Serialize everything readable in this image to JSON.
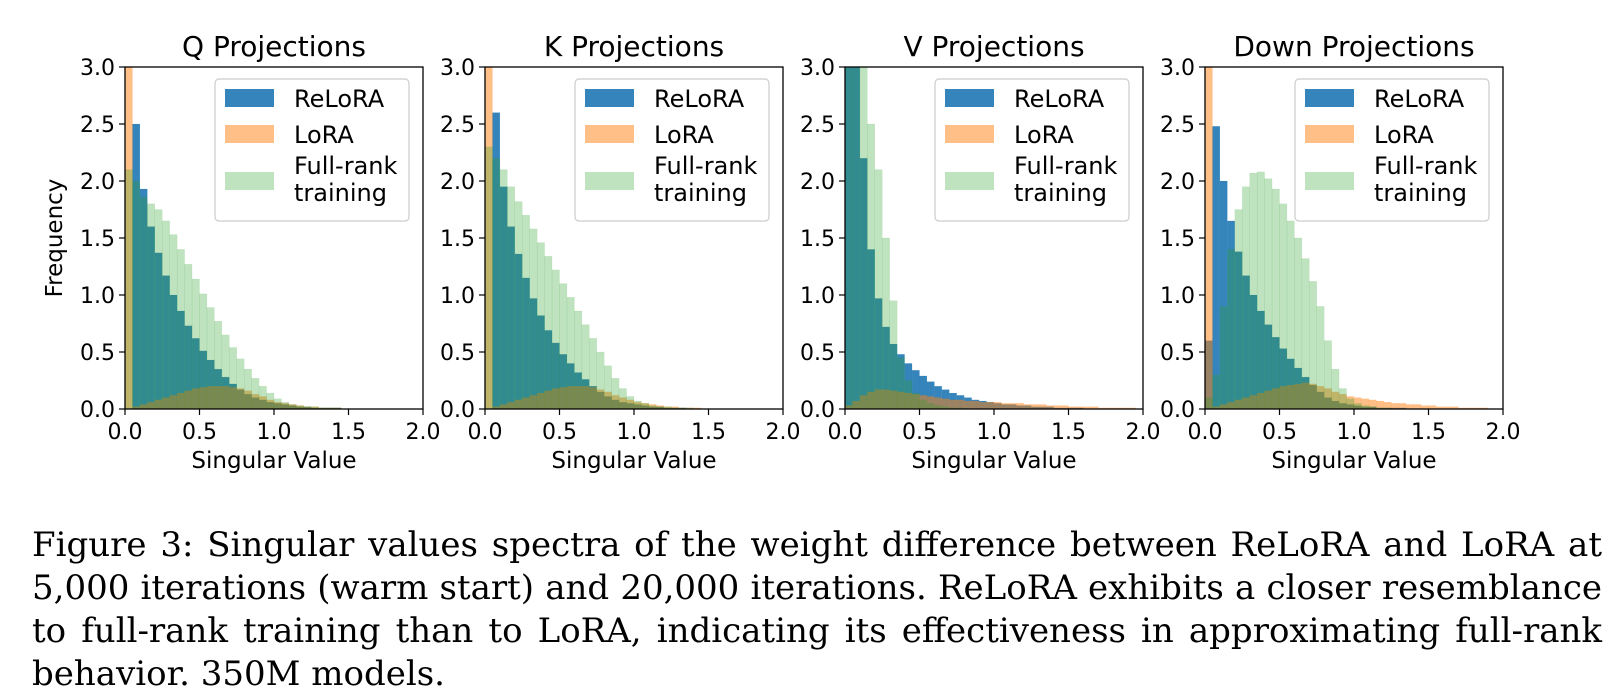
{
  "caption": "Figure 3: Singular values spectra of the weight difference between ReLoRA and LoRA at 5,000 iterations (warm start) and 20,000 iterations. ReLoRA exhibits a closer resemblance to full-rank training than to LoRA, indicating its effectiveness in approximating full-rank behavior. 350M models.",
  "colors": {
    "relora": "#1f77b4",
    "lora": "#ff7f0e",
    "full": "#2ca02c"
  },
  "chart_data": [
    {
      "type": "bar",
      "title": "Q Projections",
      "xlabel": "Singular Value",
      "ylabel": "Frequency",
      "xlim": [
        0,
        2.0
      ],
      "ylim": [
        0,
        3.0
      ],
      "xticks": [
        "0.0",
        "0.5",
        "1.0",
        "1.5",
        "2.0"
      ],
      "yticks": [
        "0.0",
        "0.5",
        "1.0",
        "1.5",
        "2.0",
        "2.5",
        "3.0"
      ],
      "legend": {
        "position": "top-right",
        "entries": [
          "ReLoRA",
          "LoRA",
          "Full-rank training"
        ]
      },
      "bin_width": 0.05,
      "bin_start": 0.0,
      "series": [
        {
          "name": "ReLoRA",
          "values": [
            0,
            2.5,
            1.93,
            1.6,
            1.37,
            1.17,
            1.0,
            0.86,
            0.73,
            0.62,
            0.51,
            0.43,
            0.35,
            0.28,
            0.22,
            0.17,
            0.13,
            0.1,
            0.08,
            0.06,
            0.05,
            0.04,
            0.03,
            0.02,
            0.02,
            0.01,
            0.01,
            0.01,
            0.01,
            0.0,
            0.0,
            0.0,
            0.0,
            0.0,
            0.0,
            0.0,
            0.0,
            0.0,
            0.0,
            0.0
          ]
        },
        {
          "name": "LoRA",
          "values": [
            3.2,
            0.02,
            0.04,
            0.06,
            0.08,
            0.1,
            0.12,
            0.14,
            0.16,
            0.18,
            0.19,
            0.2,
            0.2,
            0.2,
            0.19,
            0.18,
            0.16,
            0.13,
            0.11,
            0.08,
            0.06,
            0.05,
            0.04,
            0.03,
            0.02,
            0.02,
            0.01,
            0.01,
            0.01,
            0.0,
            0.0,
            0.0,
            0.0,
            0.0,
            0.0,
            0.0,
            0.0,
            0.0,
            0.0,
            0.0
          ]
        },
        {
          "name": "Full-rank training",
          "values": [
            2.1,
            2.0,
            1.86,
            1.8,
            1.75,
            1.65,
            1.53,
            1.4,
            1.27,
            1.14,
            1.01,
            0.89,
            0.77,
            0.65,
            0.54,
            0.44,
            0.35,
            0.27,
            0.2,
            0.14,
            0.09,
            0.06,
            0.04,
            0.03,
            0.02,
            0.02,
            0.01,
            0.01,
            0.01,
            0.0,
            0.0,
            0.0,
            0.0,
            0.0,
            0.0,
            0.0,
            0.0,
            0.0,
            0.0,
            0.0
          ]
        }
      ]
    },
    {
      "type": "bar",
      "title": "K Projections",
      "xlabel": "Singular Value",
      "ylabel": "",
      "xlim": [
        0,
        2.0
      ],
      "ylim": [
        0,
        3.0
      ],
      "xticks": [
        "0.0",
        "0.5",
        "1.0",
        "1.5",
        "2.0"
      ],
      "yticks": [
        "0.0",
        "0.5",
        "1.0",
        "1.5",
        "2.0",
        "2.5",
        "3.0"
      ],
      "legend": {
        "position": "top-right",
        "entries": [
          "ReLoRA",
          "LoRA",
          "Full-rank training"
        ]
      },
      "bin_width": 0.05,
      "bin_start": 0.0,
      "series": [
        {
          "name": "ReLoRA",
          "values": [
            0,
            2.6,
            1.95,
            1.6,
            1.36,
            1.15,
            0.97,
            0.82,
            0.69,
            0.58,
            0.48,
            0.4,
            0.32,
            0.26,
            0.2,
            0.15,
            0.11,
            0.08,
            0.06,
            0.05,
            0.04,
            0.03,
            0.02,
            0.02,
            0.01,
            0.01,
            0.01,
            0.0,
            0.0,
            0.0,
            0.0,
            0.0,
            0.0,
            0.0,
            0.0,
            0.0,
            0.0,
            0.0,
            0.0,
            0.0
          ]
        },
        {
          "name": "LoRA",
          "values": [
            3.2,
            0.02,
            0.04,
            0.06,
            0.08,
            0.1,
            0.12,
            0.14,
            0.16,
            0.18,
            0.19,
            0.2,
            0.2,
            0.2,
            0.19,
            0.17,
            0.15,
            0.12,
            0.1,
            0.08,
            0.06,
            0.05,
            0.04,
            0.03,
            0.02,
            0.02,
            0.01,
            0.01,
            0.01,
            0.0,
            0.0,
            0.0,
            0.0,
            0.0,
            0.0,
            0.0,
            0.0,
            0.0,
            0.0,
            0.0
          ]
        },
        {
          "name": "Full-rank training",
          "values": [
            2.3,
            2.2,
            2.1,
            1.95,
            1.82,
            1.7,
            1.58,
            1.46,
            1.34,
            1.22,
            1.1,
            0.98,
            0.86,
            0.74,
            0.62,
            0.5,
            0.38,
            0.27,
            0.18,
            0.11,
            0.07,
            0.05,
            0.03,
            0.02,
            0.02,
            0.01,
            0.01,
            0.01,
            0.0,
            0.0,
            0.0,
            0.0,
            0.0,
            0.0,
            0.0,
            0.0,
            0.0,
            0.0,
            0.0,
            0.0
          ]
        }
      ]
    },
    {
      "type": "bar",
      "title": "V Projections",
      "xlabel": "Singular Value",
      "ylabel": "",
      "xlim": [
        0,
        2.0
      ],
      "ylim": [
        0,
        3.0
      ],
      "xticks": [
        "0.0",
        "0.5",
        "1.0",
        "1.5",
        "2.0"
      ],
      "yticks": [
        "0.0",
        "0.5",
        "1.0",
        "1.5",
        "2.0",
        "2.5",
        "3.0"
      ],
      "legend": {
        "position": "top-right",
        "entries": [
          "ReLoRA",
          "LoRA",
          "Full-rank training"
        ]
      },
      "bin_width": 0.05,
      "bin_start": 0.0,
      "series": [
        {
          "name": "ReLoRA",
          "values": [
            3.2,
            3.0,
            2.2,
            1.4,
            0.97,
            0.72,
            0.57,
            0.48,
            0.4,
            0.34,
            0.29,
            0.24,
            0.2,
            0.17,
            0.14,
            0.12,
            0.1,
            0.08,
            0.07,
            0.06,
            0.05,
            0.04,
            0.04,
            0.03,
            0.03,
            0.02,
            0.02,
            0.02,
            0.01,
            0.01,
            0.01,
            0.01,
            0.0,
            0.0,
            0.0,
            0.0,
            0.0,
            0.0,
            0.0,
            0.0
          ]
        },
        {
          "name": "LoRA",
          "values": [
            0.03,
            0.07,
            0.12,
            0.15,
            0.17,
            0.17,
            0.16,
            0.15,
            0.14,
            0.13,
            0.12,
            0.11,
            0.1,
            0.09,
            0.08,
            0.08,
            0.07,
            0.07,
            0.06,
            0.06,
            0.06,
            0.05,
            0.05,
            0.05,
            0.04,
            0.04,
            0.04,
            0.03,
            0.03,
            0.03,
            0.02,
            0.02,
            0.02,
            0.02,
            0.01,
            0.01,
            0.01,
            0.01,
            0.01,
            0.0
          ]
        },
        {
          "name": "Full-rank training",
          "values": [
            3.2,
            3.2,
            3.0,
            2.5,
            2.1,
            1.5,
            0.95,
            0.45,
            0.25,
            0.14,
            0.08,
            0.05,
            0.03,
            0.02,
            0.01,
            0.01,
            0.0,
            0.0,
            0.0,
            0.0,
            0.0,
            0.0,
            0.0,
            0.0,
            0.0,
            0.0,
            0.0,
            0.0,
            0.0,
            0.0,
            0.0,
            0.0,
            0.0,
            0.0,
            0.0,
            0.0,
            0.0,
            0.0,
            0.0,
            0.0
          ]
        }
      ]
    },
    {
      "type": "bar",
      "title": "Down Projections",
      "xlabel": "Singular Value",
      "ylabel": "",
      "xlim": [
        0,
        2.0
      ],
      "ylim": [
        0,
        3.0
      ],
      "xticks": [
        "0.0",
        "0.5",
        "1.0",
        "1.5",
        "2.0"
      ],
      "yticks": [
        "0.0",
        "0.5",
        "1.0",
        "1.5",
        "2.0",
        "2.5",
        "3.0"
      ],
      "legend": {
        "position": "top-right",
        "entries": [
          "ReLoRA",
          "LoRA",
          "Full-rank training"
        ]
      },
      "bin_width": 0.05,
      "bin_start": 0.0,
      "series": [
        {
          "name": "ReLoRA",
          "values": [
            0.6,
            2.48,
            2.0,
            1.65,
            1.38,
            1.17,
            1.0,
            0.86,
            0.74,
            0.63,
            0.53,
            0.44,
            0.36,
            0.28,
            0.21,
            0.15,
            0.1,
            0.07,
            0.05,
            0.04,
            0.03,
            0.02,
            0.02,
            0.01,
            0.01,
            0.01,
            0.01,
            0.0,
            0.0,
            0.0,
            0.0,
            0.0,
            0.0,
            0.0,
            0.0,
            0.0,
            0.0,
            0.0,
            0.0,
            0.0
          ]
        },
        {
          "name": "LoRA",
          "values": [
            3.2,
            0.02,
            0.04,
            0.06,
            0.08,
            0.1,
            0.12,
            0.14,
            0.16,
            0.18,
            0.2,
            0.21,
            0.22,
            0.23,
            0.22,
            0.2,
            0.18,
            0.15,
            0.13,
            0.11,
            0.1,
            0.09,
            0.08,
            0.07,
            0.06,
            0.05,
            0.05,
            0.04,
            0.04,
            0.03,
            0.03,
            0.02,
            0.02,
            0.02,
            0.01,
            0.01,
            0.01,
            0.01,
            0.0,
            0.0
          ]
        },
        {
          "name": "Full-rank training",
          "values": [
            0.1,
            0.3,
            0.9,
            1.4,
            1.75,
            1.95,
            2.07,
            2.08,
            2.02,
            1.93,
            1.8,
            1.65,
            1.5,
            1.32,
            1.12,
            0.9,
            0.6,
            0.35,
            0.18,
            0.09,
            0.05,
            0.03,
            0.02,
            0.01,
            0.01,
            0.0,
            0.0,
            0.0,
            0.0,
            0.0,
            0.0,
            0.0,
            0.0,
            0.0,
            0.0,
            0.0,
            0.0,
            0.0,
            0.0,
            0.0
          ]
        }
      ]
    }
  ]
}
